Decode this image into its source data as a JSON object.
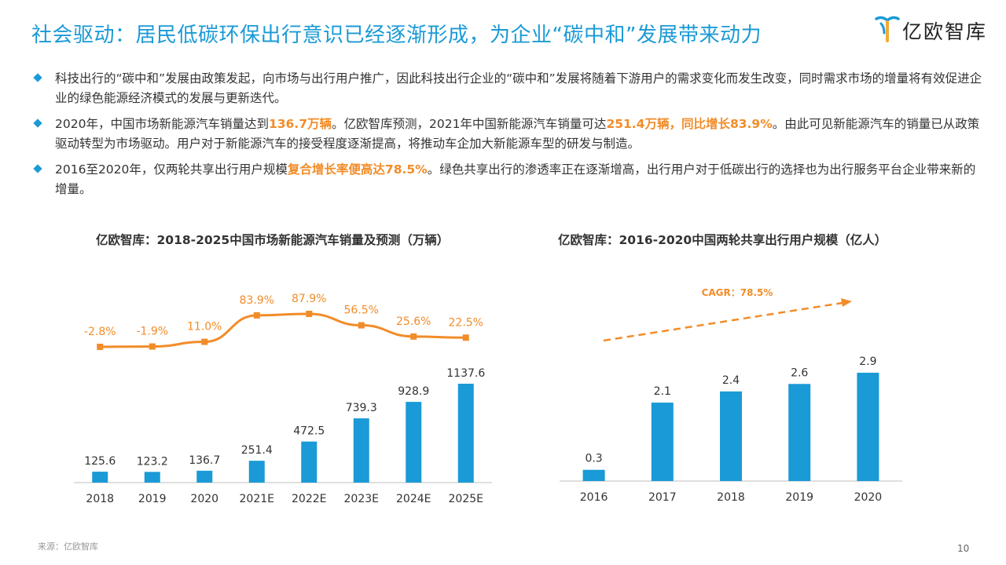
{
  "title": "社会驱动：居民低碳环保出行意识已经逐渐形成，为企业“碳中和”发展带来动力",
  "logo": {
    "text": "亿欧智库"
  },
  "bullets": [
    {
      "segments": [
        {
          "text": "科技出行的“碳中和”发展由政策发起，向市场与出行用户推广，因此科技出行企业的“碳中和”发展将随着下游用户的需求变化而发生改变，同时需求市场的增量将有效促进企业的绿色能源经济模式的发展与更新迭代。",
          "hl": false
        }
      ]
    },
    {
      "segments": [
        {
          "text": "2020年，中国市场新能源汽车销量达到",
          "hl": false
        },
        {
          "text": "136.7万辆",
          "hl": true
        },
        {
          "text": "。亿欧智库预测，2021年中国新能源汽车销量可达",
          "hl": false
        },
        {
          "text": "251.4万辆，同比增长83.9%",
          "hl": true
        },
        {
          "text": "。由此可见新能源汽车的销量已从政策驱动转型为市场驱动。用户对于新能源汽车的接受程度逐渐提高，将推动车企加大新能源车型的研发与制造。",
          "hl": false
        }
      ]
    },
    {
      "segments": [
        {
          "text": "2016至2020年，仅两轮共享出行用户规模",
          "hl": false
        },
        {
          "text": "复合增长率便高达78.5%",
          "hl": true
        },
        {
          "text": "。绿色共享出行的渗透率正在逐渐增高，出行用户对于低碳出行的选择也为出行服务平台企业带来新的增量。",
          "hl": false
        }
      ]
    }
  ],
  "chart_data": [
    {
      "type": "bar",
      "title": "亿欧智库：2018-2025中国市场新能源汽车销量及预测（万辆）",
      "categories": [
        "2018",
        "2019",
        "2020",
        "2021E",
        "2022E",
        "2023E",
        "2024E",
        "2025E"
      ],
      "values": [
        125.6,
        123.2,
        136.7,
        251.4,
        472.5,
        739.3,
        928.9,
        1137.6
      ],
      "value_labels": [
        "125.6",
        "123.2",
        "136.7",
        "251.4",
        "472.5",
        "739.3",
        "928.9",
        "1137.6"
      ],
      "line": {
        "values": [
          -2.8,
          -1.9,
          11.0,
          83.9,
          87.9,
          56.5,
          25.6,
          22.5
        ],
        "labels": [
          "-2.8%",
          "-1.9%",
          "11.0%",
          "83.9%",
          "87.9%",
          "56.5%",
          "25.6%",
          "22.5%"
        ]
      },
      "colors": {
        "bar": "#1a9ad6",
        "line": "#f28c28"
      },
      "grid": false
    },
    {
      "type": "bar",
      "title": "亿欧智库：2016-2020中国两轮共享出行用户规模（亿人）",
      "categories": [
        "2016",
        "2017",
        "2018",
        "2019",
        "2020"
      ],
      "values": [
        0.3,
        2.1,
        2.4,
        2.6,
        2.9
      ],
      "value_labels": [
        "0.3",
        "2.1",
        "2.4",
        "2.6",
        "2.9"
      ],
      "annotation": "CAGR：78.5%",
      "colors": {
        "bar": "#1a9ad6",
        "arrow": "#f28c28"
      },
      "grid": false
    }
  ],
  "source": "来源：亿欧智库",
  "page_number": "10"
}
